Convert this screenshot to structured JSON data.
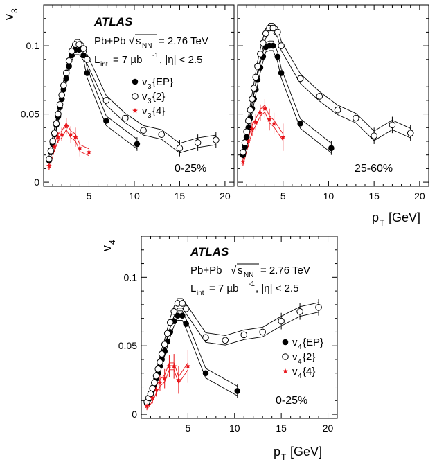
{
  "experiment": "ATLAS",
  "collision": "Pb+Pb",
  "energy_label": "= 2.76 TeV",
  "sqrt_s_label": "s",
  "sqrt_s_sub": "NN",
  "lumi_prefix": "L",
  "lumi_sub": "int",
  "lumi_value": "= 7 µb",
  "lumi_sup": "-1",
  "eta_cut": ", |η| < 2.5",
  "x_title": "p",
  "x_title_sub": "T",
  "x_title_unit": "[GeV]",
  "colors": {
    "filled": "#000000",
    "open": "#000000",
    "four": "#e8141a"
  },
  "chart_data": [
    {
      "type": "scatter",
      "panel": "v3 0-25%",
      "ylabel": "v",
      "ylabel_sub": "3",
      "centrality": "0-25%",
      "xlim": [
        0,
        21
      ],
      "ylim": [
        -0.003,
        0.13
      ],
      "xticks": [
        5,
        10,
        15,
        20
      ],
      "yticks": [
        0,
        0.05,
        0.1
      ],
      "ytick_labels": [
        "0",
        "0.05",
        "0.1"
      ],
      "legend": [
        {
          "series": "EP",
          "base": "v",
          "sub": "3",
          "label": "{EP}"
        },
        {
          "series": "two",
          "base": "v",
          "sub": "3",
          "label": "{2}"
        },
        {
          "series": "four",
          "base": "v",
          "sub": "3",
          "label": "{4}"
        }
      ],
      "series": [
        {
          "name": "v3{EP}",
          "key": "EP",
          "marker": "filled",
          "x": [
            0.6,
            0.8,
            1.0,
            1.2,
            1.4,
            1.6,
            1.8,
            2.0,
            2.2,
            2.5,
            2.8,
            3.1,
            3.5,
            3.9,
            4.4,
            4.8,
            6.9,
            10.3
          ],
          "y": [
            0.016,
            0.022,
            0.028,
            0.035,
            0.042,
            0.048,
            0.055,
            0.061,
            0.068,
            0.076,
            0.085,
            0.093,
            0.097,
            0.097,
            0.093,
            0.08,
            0.045,
            0.028
          ]
        },
        {
          "name": "v3{2}",
          "key": "two",
          "marker": "open",
          "x": [
            0.6,
            0.8,
            1.0,
            1.2,
            1.4,
            1.6,
            1.8,
            2.0,
            2.2,
            2.5,
            2.8,
            3.1,
            3.5,
            3.9,
            4.4,
            4.8,
            6.9,
            9.0,
            11,
            13,
            15,
            17,
            19
          ],
          "y": [
            0.017,
            0.023,
            0.03,
            0.036,
            0.043,
            0.05,
            0.057,
            0.064,
            0.071,
            0.08,
            0.089,
            0.096,
            0.101,
            0.101,
            0.098,
            0.09,
            0.06,
            0.047,
            0.038,
            0.035,
            0.025,
            0.029,
            0.031
          ]
        },
        {
          "name": "v3{4}",
          "key": "four",
          "marker": "star",
          "x": [
            0.6,
            1.2,
            1.6,
            2.0,
            2.5,
            3.0,
            3.5,
            4.0,
            5.0
          ],
          "y": [
            0.012,
            0.026,
            0.033,
            0.035,
            0.041,
            0.035,
            0.033,
            0.025,
            0.022
          ],
          "err": [
            0.003,
            0.004,
            0.004,
            0.005,
            0.006,
            0.006,
            0.007,
            0.006,
            0.005
          ]
        }
      ]
    },
    {
      "type": "scatter",
      "panel": "v3 25-60%",
      "ylabel": "",
      "ylabel_sub": "",
      "centrality": "25-60%",
      "xlim": [
        0,
        21
      ],
      "ylim": [
        -0.003,
        0.13
      ],
      "xticks": [
        5,
        10,
        15,
        20
      ],
      "yticks": [
        0,
        0.05,
        0.1
      ],
      "ytick_labels": [
        "",
        "",
        ""
      ],
      "legend": [],
      "series": [
        {
          "name": "v3{EP}",
          "key": "EP",
          "marker": "filled",
          "x": [
            0.6,
            0.8,
            1.0,
            1.2,
            1.4,
            1.6,
            1.8,
            2.0,
            2.2,
            2.5,
            2.8,
            3.1,
            3.5,
            3.9,
            4.4,
            4.8,
            6.9,
            10.3
          ],
          "y": [
            0.02,
            0.026,
            0.033,
            0.04,
            0.047,
            0.054,
            0.061,
            0.068,
            0.075,
            0.084,
            0.092,
            0.099,
            0.1,
            0.1,
            0.092,
            0.08,
            0.043,
            0.025
          ]
        },
        {
          "name": "v3{2}",
          "key": "two",
          "marker": "open",
          "x": [
            0.6,
            0.8,
            1.0,
            1.2,
            1.4,
            1.6,
            1.8,
            2.0,
            2.2,
            2.5,
            2.8,
            3.1,
            3.5,
            3.9,
            4.4,
            4.8,
            6.9,
            9.0,
            11,
            13,
            15,
            17,
            19
          ],
          "y": [
            0.022,
            0.029,
            0.037,
            0.045,
            0.053,
            0.061,
            0.069,
            0.077,
            0.085,
            0.094,
            0.102,
            0.109,
            0.113,
            0.113,
            0.11,
            0.1,
            0.076,
            0.063,
            0.053,
            0.047,
            0.034,
            0.042,
            0.036
          ]
        },
        {
          "name": "v3{4}",
          "key": "four",
          "marker": "star",
          "x": [
            0.6,
            1.2,
            1.6,
            2.0,
            2.5,
            3.0,
            3.5,
            4.0,
            5.0
          ],
          "y": [
            0.015,
            0.03,
            0.039,
            0.044,
            0.051,
            0.054,
            0.046,
            0.043,
            0.033
          ],
          "err": [
            0.003,
            0.004,
            0.005,
            0.006,
            0.006,
            0.007,
            0.008,
            0.008,
            0.01
          ]
        }
      ]
    },
    {
      "type": "scatter",
      "panel": "v4 0-25%",
      "ylabel": "v",
      "ylabel_sub": "4",
      "centrality": "0-25%",
      "xlim": [
        0,
        21
      ],
      "ylim": [
        -0.003,
        0.13
      ],
      "xticks": [
        5,
        10,
        15,
        20
      ],
      "yticks": [
        0,
        0.05,
        0.1
      ],
      "ytick_labels": [
        "0",
        "0.05",
        "0.1"
      ],
      "legend": [
        {
          "series": "EP",
          "base": "v",
          "sub": "4",
          "label": "{EP}"
        },
        {
          "series": "two",
          "base": "v",
          "sub": "4",
          "label": "{2}"
        },
        {
          "series": "four",
          "base": "v",
          "sub": "4",
          "label": "{4}"
        }
      ],
      "series": [
        {
          "name": "v4{EP}",
          "key": "EP",
          "marker": "filled",
          "x": [
            0.6,
            0.8,
            1.0,
            1.2,
            1.4,
            1.6,
            1.8,
            2.0,
            2.2,
            2.5,
            2.8,
            3.1,
            3.5,
            3.9,
            4.4,
            4.8,
            6.9,
            10.3
          ],
          "y": [
            0.008,
            0.011,
            0.014,
            0.018,
            0.022,
            0.026,
            0.03,
            0.035,
            0.04,
            0.046,
            0.053,
            0.06,
            0.068,
            0.072,
            0.072,
            0.066,
            0.03,
            0.017
          ]
        },
        {
          "name": "v4{2}",
          "key": "two",
          "marker": "open",
          "x": [
            0.6,
            0.8,
            1.0,
            1.2,
            1.4,
            1.6,
            1.8,
            2.0,
            2.2,
            2.5,
            2.8,
            3.1,
            3.5,
            3.9,
            4.4,
            4.8,
            6.9,
            9.0,
            11,
            13,
            15,
            17,
            19
          ],
          "y": [
            0.009,
            0.012,
            0.015,
            0.019,
            0.023,
            0.028,
            0.033,
            0.038,
            0.044,
            0.051,
            0.059,
            0.067,
            0.075,
            0.081,
            0.081,
            0.077,
            0.056,
            0.054,
            0.058,
            0.06,
            0.068,
            0.075,
            0.078
          ]
        },
        {
          "name": "v4{4}",
          "key": "four",
          "marker": "star",
          "x": [
            0.6,
            1.2,
            1.6,
            2.0,
            2.5,
            3.0,
            3.5,
            4.0,
            5.0
          ],
          "y": [
            0.006,
            0.012,
            0.018,
            0.023,
            0.026,
            0.035,
            0.035,
            0.025,
            0.035
          ],
          "err": [
            0.003,
            0.004,
            0.005,
            0.006,
            0.007,
            0.008,
            0.009,
            0.01,
            0.012
          ]
        }
      ]
    }
  ]
}
